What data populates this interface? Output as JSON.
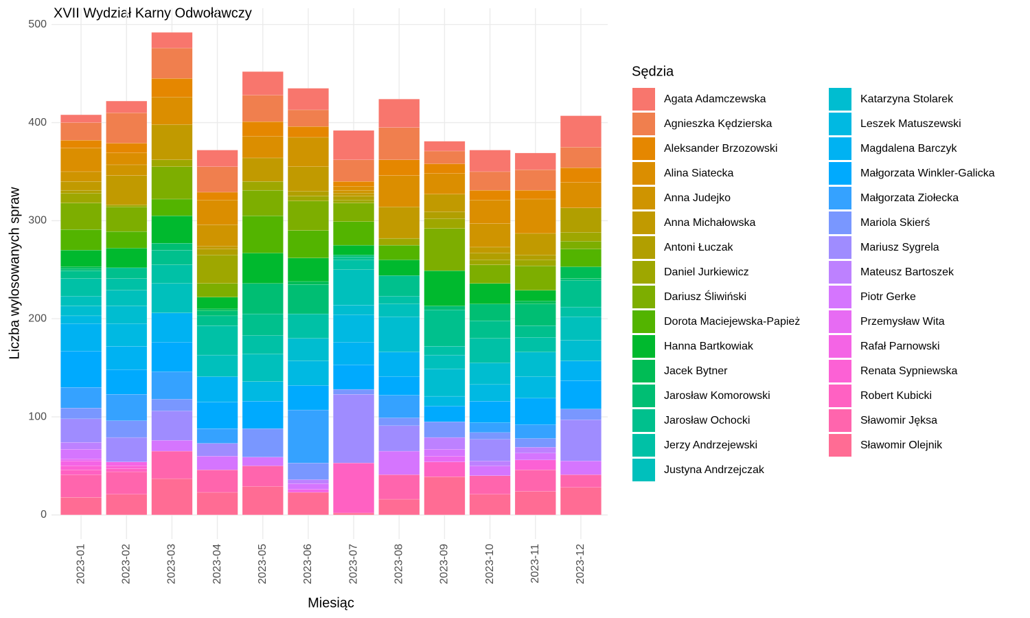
{
  "chart_data": {
    "type": "stacked_bar",
    "title": "XVII Wydział Karny Odwoławczy",
    "x_label": "Miesiąc",
    "y_label": "Liczba wylosowanych spraw",
    "legend_title": "Sędzia",
    "categories": [
      "2023-01",
      "2023-02",
      "2023-03",
      "2023-04",
      "2023-05",
      "2023-06",
      "2023-07",
      "2023-08",
      "2023-09",
      "2023-10",
      "2023-11",
      "2023-12"
    ],
    "ylim": [
      -24.6,
      516.6
    ],
    "yticks": [
      0,
      100,
      200,
      300,
      400,
      500
    ],
    "grid": true,
    "series": [
      {
        "name": "Agata Adamczewska",
        "color": "#F8766D",
        "values": [
          8,
          12,
          16,
          17,
          24,
          22,
          30,
          29,
          10,
          22,
          17,
          32
        ]
      },
      {
        "name": "Agnieszka Kędzierska",
        "color": "#F07F4E",
        "values": [
          18,
          31,
          31,
          26,
          27,
          17,
          22,
          33,
          13,
          19,
          21,
          21
        ]
      },
      {
        "name": "Aleksander Brzozowski",
        "color": "#E58700",
        "values": [
          8,
          10,
          19,
          8,
          15,
          11,
          5,
          16,
          10,
          10,
          9,
          15
        ]
      },
      {
        "name": "Alina Siatecka",
        "color": "#DB8E00",
        "values": [
          24,
          12,
          28,
          25,
          22,
          0,
          4,
          32,
          21,
          24,
          35,
          26
        ]
      },
      {
        "name": "Anna Judejko",
        "color": "#CF9400",
        "values": [
          10,
          11,
          0,
          22,
          0,
          30,
          3,
          0,
          0,
          24,
          0,
          0
        ]
      },
      {
        "name": "Anna Michałowska",
        "color": "#C19A00",
        "values": [
          9,
          30,
          36,
          3,
          24,
          25,
          3,
          32,
          18,
          6,
          22,
          0
        ]
      },
      {
        "name": "Antoni Łuczak",
        "color": "#B19F00",
        "values": [
          3,
          0,
          0,
          6,
          0,
          5,
          4,
          0,
          7,
          7,
          5,
          25
        ]
      },
      {
        "name": "Daniel Jurkiewicz",
        "color": "#9EA700",
        "values": [
          10,
          2,
          7,
          29,
          9,
          5,
          3,
          7,
          10,
          5,
          6,
          9
        ]
      },
      {
        "name": "Dariusz Śliwiński",
        "color": "#7DAE00",
        "values": [
          27,
          25,
          33,
          14,
          26,
          30,
          19,
          0,
          43,
          19,
          25,
          8
        ]
      },
      {
        "name": "Dorota Maciejewska-Papież",
        "color": "#53B400",
        "values": [
          21,
          17,
          17,
          0,
          38,
          28,
          24,
          15,
          0,
          0,
          0,
          18
        ]
      },
      {
        "name": "Hanna Bartkowiak",
        "color": "#00B92E",
        "values": [
          17,
          20,
          28,
          12,
          31,
          24,
          10,
          16,
          36,
          21,
          11,
          0
        ]
      },
      {
        "name": "Jacek Bytner",
        "color": "#00BC55",
        "values": [
          2,
          0,
          0,
          2,
          0,
          3,
          0,
          0,
          0,
          0,
          3,
          12
        ]
      },
      {
        "name": "Jarosław Komorowski",
        "color": "#00BE73",
        "values": [
          2,
          0,
          7,
          5,
          31,
          30,
          2,
          0,
          4,
          17,
          22,
          2
        ]
      },
      {
        "name": "Jarosław Ochocki",
        "color": "#00C08D",
        "values": [
          8,
          11,
          15,
          10,
          22,
          0,
          3,
          21,
          37,
          18,
          12,
          27
        ]
      },
      {
        "name": "Jerzy Andrzejewski",
        "color": "#00C1A6",
        "values": [
          18,
          12,
          19,
          30,
          19,
          25,
          10,
          8,
          9,
          25,
          15,
          10
        ]
      },
      {
        "name": "Justyna Andrzejczak",
        "color": "#00C0BC",
        "values": [
          10,
          16,
          30,
          22,
          28,
          0,
          36,
          13,
          14,
          0,
          0,
          24
        ]
      },
      {
        "name": "Katarzyna Stolarek",
        "color": "#00BDD0",
        "values": [
          10,
          18,
          0,
          0,
          0,
          23,
          10,
          36,
          28,
          22,
          25,
          21
        ]
      },
      {
        "name": "Leszek Matuszewski",
        "color": "#00B9E2",
        "values": [
          8,
          23,
          0,
          0,
          20,
          25,
          28,
          0,
          10,
          17,
          22,
          0
        ]
      },
      {
        "name": "Magdalena Barczyk",
        "color": "#00B2F2",
        "values": [
          28,
          24,
          30,
          26,
          0,
          0,
          23,
          25,
          0,
          0,
          0,
          20
        ]
      },
      {
        "name": "Małgorzata Winkler-Galicka",
        "color": "#00AAFE",
        "values": [
          37,
          25,
          30,
          27,
          28,
          25,
          25,
          19,
          16,
          22,
          27,
          29
        ]
      },
      {
        "name": "Małgorzata Ziołecka",
        "color": "#35A2FF",
        "values": [
          21,
          27,
          28,
          15,
          0,
          54,
          0,
          23,
          0,
          10,
          14,
          0
        ]
      },
      {
        "name": "Mariola Skierś",
        "color": "#7997FF",
        "values": [
          11,
          17,
          12,
          0,
          29,
          17,
          5,
          8,
          16,
          7,
          9,
          11
        ]
      },
      {
        "name": "Mariusz Sygrela",
        "color": "#9F8CFF",
        "values": [
          24,
          25,
          30,
          13,
          0,
          0,
          70,
          26,
          0,
          22,
          0,
          42
        ]
      },
      {
        "name": "Mateusz Bartoszek",
        "color": "#BD81FF",
        "values": [
          7,
          0,
          0,
          0,
          0,
          4,
          0,
          0,
          12,
          5,
          6,
          0
        ]
      },
      {
        "name": "Piotr Gerke",
        "color": "#D575FE",
        "values": [
          10,
          0,
          11,
          14,
          9,
          6,
          0,
          24,
          7,
          10,
          7,
          14
        ]
      },
      {
        "name": "Przemysław Wita",
        "color": "#E76BF3",
        "values": [
          2,
          0,
          0,
          0,
          0,
          0,
          0,
          0,
          6,
          0,
          0,
          0
        ]
      },
      {
        "name": "Rafał Parnowski",
        "color": "#F464E5",
        "values": [
          5,
          4,
          0,
          0,
          0,
          3,
          0,
          0,
          0,
          0,
          0,
          0
        ]
      },
      {
        "name": "Renata Sypniewska",
        "color": "#FC61D5",
        "values": [
          4,
          3,
          0,
          0,
          0,
          0,
          0,
          0,
          0,
          0,
          10,
          0
        ]
      },
      {
        "name": "Robert Kubicki",
        "color": "#FF61C2",
        "values": [
          5,
          3,
          0,
          0,
          0,
          0,
          51,
          0,
          15,
          0,
          0,
          0
        ]
      },
      {
        "name": "Sławomir Jęksa",
        "color": "#FF65AD",
        "values": [
          23,
          23,
          28,
          23,
          21,
          0,
          0,
          25,
          0,
          19,
          22,
          13
        ]
      },
      {
        "name": "Sławomir Olejnik",
        "color": "#FF6C94",
        "values": [
          18,
          21,
          37,
          23,
          29,
          23,
          2,
          16,
          39,
          21,
          24,
          28
        ]
      }
    ]
  }
}
